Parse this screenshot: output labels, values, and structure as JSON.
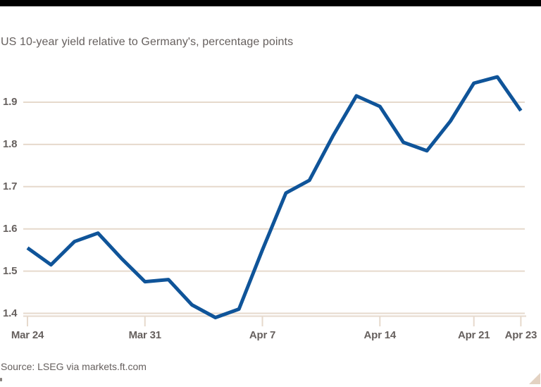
{
  "title": "US 10-year yield relative to Germany's, percentage points",
  "source": "Source: LSEG via markets.ft.com",
  "colors": {
    "line": "#0f5499",
    "grid": "#e6d9cc",
    "axis_text": "#66605e",
    "top_bar": "#000000",
    "corner_triangle": "#e3d2c2",
    "background": "#ffffff"
  },
  "chart_data": {
    "type": "line",
    "title": "US 10-year yield relative to Germany's, percentage points",
    "ylabel": "percentage points",
    "xlabel": "",
    "grid": "horizontal",
    "legend": "none",
    "ylim": [
      1.37,
      1.98
    ],
    "y_ticks": [
      1.9,
      1.8,
      1.7,
      1.6,
      1.5,
      1.4
    ],
    "x": [
      "Mar 24",
      "Mar 25",
      "Mar 26",
      "Mar 27",
      "Mar 28",
      "Mar 31",
      "Apr 1",
      "Apr 2",
      "Apr 3",
      "Apr 4",
      "Apr 7",
      "Apr 8",
      "Apr 9",
      "Apr 10",
      "Apr 11",
      "Apr 14",
      "Apr 15",
      "Apr 16",
      "Apr 17",
      "Apr 21",
      "Apr 22",
      "Apr 23"
    ],
    "x_ticks": [
      {
        "label": "Mar 24",
        "index": 0
      },
      {
        "label": "Mar 31",
        "index": 5
      },
      {
        "label": "Apr 7",
        "index": 10
      },
      {
        "label": "Apr 14",
        "index": 15
      },
      {
        "label": "Apr 21",
        "index": 19
      },
      {
        "label": "Apr 23",
        "index": 21
      }
    ],
    "series": [
      {
        "name": "US 10-year yield relative to Germany's",
        "color": "#0f5499",
        "values": [
          1.555,
          1.515,
          1.57,
          1.59,
          1.53,
          1.475,
          1.48,
          1.42,
          1.39,
          1.41,
          1.55,
          1.685,
          1.715,
          1.82,
          1.915,
          1.89,
          1.805,
          1.785,
          1.855,
          1.945,
          1.96,
          1.88
        ]
      }
    ]
  }
}
